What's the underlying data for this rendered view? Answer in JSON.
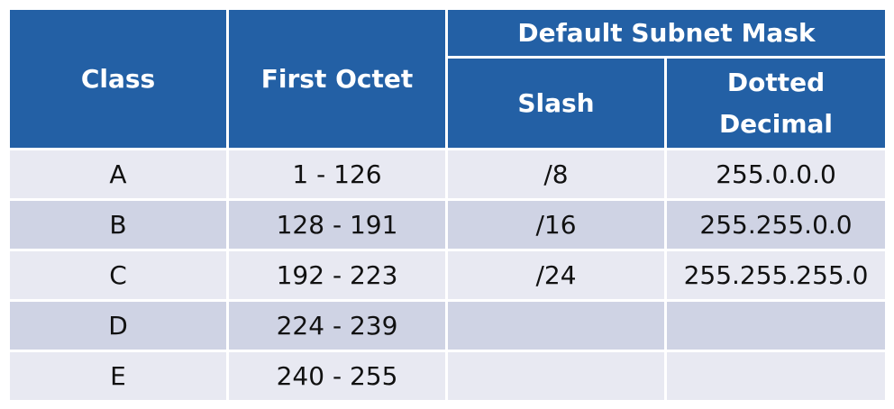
{
  "table": {
    "headers": {
      "class": "Class",
      "first_octet": "First Octet",
      "default_subnet_mask": "Default Subnet Mask",
      "slash": "Slash",
      "dotted_decimal_line1": "Dotted",
      "dotted_decimal_line2": "Decimal"
    },
    "rows": [
      {
        "class": "A",
        "first_octet": "1 - 126",
        "slash": "/8",
        "dotted": "255.0.0.0"
      },
      {
        "class": "B",
        "first_octet": "128 - 191",
        "slash": "/16",
        "dotted": "255.255.0.0"
      },
      {
        "class": "C",
        "first_octet": "192 - 223",
        "slash": "/24",
        "dotted": "255.255.255.0"
      },
      {
        "class": "D",
        "first_octet": "224 - 239",
        "slash": "",
        "dotted": ""
      },
      {
        "class": "E",
        "first_octet": "240 - 255",
        "slash": "",
        "dotted": ""
      }
    ]
  },
  "colors": {
    "header_bg": "#2360a5",
    "row_light": "#e8e9f2",
    "row_dark": "#cfd3e4"
  }
}
